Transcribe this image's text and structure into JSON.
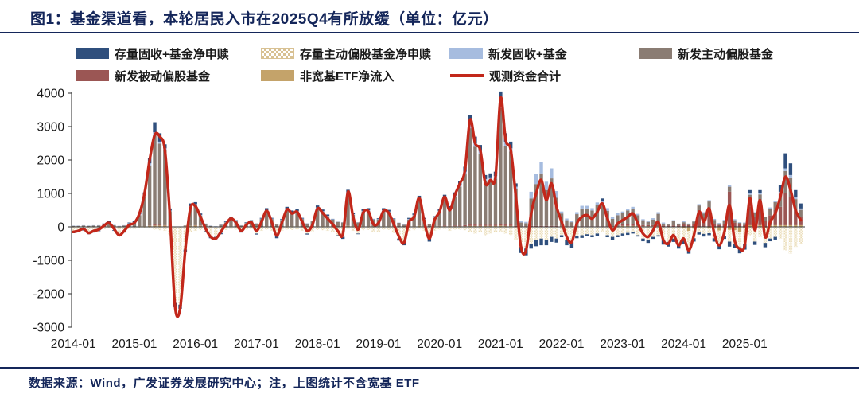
{
  "header": {
    "title": "图1：基金渠道看，本轮居民入市在2025Q4有所放缓（单位：亿元）"
  },
  "footer": {
    "text": "数据来源：Wind，广发证券发展研究中心；注，上图统计不含宽基 ETF"
  },
  "colors": {
    "title_navy": "#14265A",
    "navy_bar": "#2F4F7D",
    "dotted_tan": "#D8C193",
    "light_blue": "#A6BCDF",
    "gray_brown": "#8A7C73",
    "maroon": "#9B5654",
    "tan": "#C4A36A",
    "red_line": "#C2271A"
  },
  "legend": {
    "items": [
      {
        "label": "存量固收+基金净申赎",
        "color": "#2F4F7D",
        "type": "solid"
      },
      {
        "label": "存量主动偏股基金净申赎",
        "color": "#D8C193",
        "type": "pattern"
      },
      {
        "label": "新发固收+基金",
        "color": "#A6BCDF",
        "type": "solid"
      },
      {
        "label": "新发主动偏股基金",
        "color": "#8A7C73",
        "type": "solid"
      },
      {
        "label": "新发被动偏股基金",
        "color": "#9B5654",
        "type": "solid"
      },
      {
        "label": "非宽基ETF净流入",
        "color": "#C4A36A",
        "type": "solid"
      },
      {
        "label": "观测资金合计",
        "color": "#C2271A",
        "type": "line"
      }
    ]
  },
  "chart_data": {
    "type": "bar",
    "subtype": "stacked-bar-with-line",
    "title": "图1：基金渠道看，本轮居民入市在2025Q4有所放缓（单位：亿元）",
    "unit": "亿元",
    "freq": "monthly",
    "x_start": "2014-01",
    "x_end": "2025-12",
    "x_tick_labels": [
      "2014-01",
      "2015-01",
      "2016-01",
      "2017-01",
      "2018-01",
      "2019-01",
      "2020-01",
      "2021-01",
      "2022-01",
      "2023-01",
      "2024-01",
      "2025-01"
    ],
    "ylim": [
      -3000,
      4000
    ],
    "y_ticks": [
      4000,
      3000,
      2000,
      1000,
      0,
      -1000,
      -2000,
      -3000
    ],
    "grid": false,
    "legend_position": "top",
    "series": [
      {
        "key": "fi_exist",
        "name": "存量固收+基金净申赎",
        "color": "#2F4F7D",
        "pattern": false,
        "values": [
          -40,
          -30,
          -20,
          -50,
          -30,
          -20,
          20,
          40,
          -20,
          -60,
          -30,
          20,
          40,
          60,
          80,
          150,
          300,
          250,
          120,
          60,
          -120,
          -120,
          -60,
          80,
          60,
          40,
          -20,
          -60,
          -70,
          -40,
          20,
          40,
          20,
          -30,
          15,
          25,
          -30,
          20,
          60,
          20,
          -60,
          20,
          60,
          50,
          60,
          20,
          -30,
          10,
          60,
          50,
          40,
          10,
          -30,
          -60,
          110,
          40,
          -20,
          50,
          60,
          10,
          20,
          60,
          50,
          10,
          -60,
          -100,
          30,
          40,
          90,
          30,
          -90,
          30,
          50,
          90,
          60,
          90,
          120,
          150,
          280,
          200,
          180,
          120,
          120,
          130,
          350,
          250,
          200,
          100,
          -180,
          -200,
          -150,
          -180,
          -200,
          -150,
          -150,
          -120,
          -60,
          -150,
          -180,
          -60,
          -80,
          -60,
          -60,
          -80,
          90,
          -60,
          -90,
          -60,
          -60,
          -60,
          -50,
          -40,
          -80,
          -100,
          -60,
          -40,
          -130,
          -140,
          -100,
          -150,
          -120,
          -180,
          -100,
          -60,
          -80,
          -60,
          -100,
          -160,
          -80,
          -150,
          -130,
          -180,
          -180,
          100,
          -100,
          90,
          -130,
          -80,
          -80,
          200,
          450,
          350,
          220,
          150
        ]
      },
      {
        "key": "active_exist",
        "name": "存量主动偏股基金净申赎",
        "color": "#D8C193",
        "pattern": true,
        "values": [
          -140,
          -120,
          -90,
          -160,
          -130,
          -100,
          -70,
          -50,
          -90,
          -200,
          -130,
          -70,
          -60,
          -40,
          -30,
          -50,
          -80,
          -100,
          -120,
          -250,
          -2280,
          -2330,
          -680,
          -150,
          -120,
          -100,
          -130,
          -280,
          -300,
          -180,
          -90,
          -60,
          -80,
          -140,
          -80,
          -60,
          -200,
          -120,
          -80,
          -120,
          -280,
          -120,
          -80,
          -90,
          -80,
          -120,
          -200,
          -130,
          -90,
          -100,
          -120,
          -160,
          -250,
          -300,
          -60,
          -120,
          -200,
          -100,
          -90,
          -160,
          -140,
          -80,
          -90,
          -180,
          -350,
          -450,
          -120,
          -100,
          -60,
          -120,
          -350,
          -120,
          -80,
          -60,
          -120,
          -80,
          -80,
          -100,
          -150,
          -200,
          -150,
          -250,
          -200,
          -150,
          -150,
          -200,
          -250,
          -400,
          -600,
          -650,
          -500,
          -400,
          -350,
          -400,
          -300,
          -350,
          -250,
          -400,
          -450,
          -280,
          -250,
          -220,
          -250,
          -200,
          -150,
          -250,
          -300,
          -250,
          -200,
          -180,
          -150,
          -250,
          -350,
          -380,
          -300,
          -250,
          -400,
          -450,
          -350,
          -500,
          -350,
          -500,
          -300,
          -150,
          -200,
          -150,
          -300,
          -400,
          -250,
          -350,
          -400,
          -450,
          -450,
          -250,
          -400,
          -300,
          -450,
          -350,
          -300,
          -350,
          -700,
          -800,
          -600,
          -500
        ]
      },
      {
        "key": "fi_new",
        "name": "新发固收+基金",
        "color": "#A6BCDF",
        "pattern": false,
        "values": [
          10,
          10,
          10,
          10,
          10,
          10,
          15,
          20,
          10,
          10,
          10,
          15,
          20,
          30,
          40,
          60,
          80,
          60,
          50,
          20,
          0,
          0,
          0,
          30,
          30,
          20,
          10,
          10,
          10,
          10,
          15,
          20,
          15,
          10,
          10,
          15,
          10,
          15,
          20,
          15,
          10,
          15,
          25,
          20,
          25,
          15,
          10,
          15,
          20,
          20,
          15,
          15,
          10,
          10,
          30,
          20,
          10,
          20,
          20,
          15,
          15,
          20,
          20,
          15,
          10,
          10,
          20,
          20,
          30,
          20,
          10,
          20,
          30,
          50,
          30,
          50,
          60,
          80,
          120,
          100,
          90,
          60,
          70,
          80,
          150,
          120,
          100,
          80,
          50,
          40,
          200,
          300,
          350,
          250,
          300,
          200,
          60,
          50,
          40,
          60,
          80,
          80,
          70,
          80,
          100,
          80,
          50,
          60,
          50,
          50,
          60,
          40,
          30,
          30,
          40,
          50,
          30,
          20,
          30,
          20,
          30,
          20,
          30,
          40,
          40,
          40,
          30,
          20,
          30,
          40,
          30,
          20,
          20,
          40,
          20,
          40,
          20,
          30,
          40,
          60,
          80,
          70,
          50,
          40
        ]
      },
      {
        "key": "active_new",
        "name": "新发主动偏股基金",
        "color": "#8A7C73",
        "pattern": false,
        "values": [
          30,
          30,
          40,
          30,
          40,
          40,
          60,
          90,
          50,
          20,
          40,
          80,
          110,
          330,
          890,
          1800,
          2680,
          2430,
          2250,
          450,
          0,
          0,
          20,
          560,
          600,
          300,
          80,
          20,
          0,
          50,
          125,
          230,
          155,
          30,
          105,
          150,
          90,
          225,
          460,
          225,
          60,
          195,
          495,
          400,
          425,
          225,
          90,
          155,
          540,
          430,
          295,
          195,
          140,
          120,
          940,
          340,
          120,
          440,
          460,
          195,
          205,
          460,
          420,
          215,
          110,
          50,
          200,
          320,
          780,
          200,
          70,
          250,
          420,
          780,
          500,
          850,
          1160,
          1520,
          2880,
          2330,
          2120,
          1310,
          1350,
          1380,
          3460,
          2360,
          2180,
          1090,
          110,
          90,
          820,
          1250,
          1570,
          1070,
          1420,
          840,
          360,
          180,
          120,
          360,
          530,
          530,
          470,
          630,
          640,
          460,
          220,
          330,
          330,
          410,
          460,
          280,
          150,
          100,
          170,
          330,
          60,
          30,
          130,
          40,
          60,
          30,
          80,
          250,
          180,
          280,
          130,
          50,
          100,
          150,
          80,
          40,
          60,
          360,
          120,
          350,
          110,
          200,
          240,
          390,
          670,
          580,
          330,
          210
        ]
      },
      {
        "key": "passive_new",
        "name": "新发被动偏股基金",
        "color": "#9B5654",
        "pattern": false,
        "values": [
          0,
          0,
          0,
          0,
          0,
          0,
          0,
          0,
          0,
          0,
          0,
          0,
          0,
          0,
          0,
          10,
          30,
          20,
          10,
          0,
          0,
          0,
          0,
          0,
          10,
          10,
          0,
          0,
          0,
          0,
          0,
          0,
          0,
          0,
          0,
          0,
          0,
          0,
          0,
          0,
          0,
          0,
          0,
          0,
          0,
          0,
          0,
          0,
          0,
          0,
          0,
          0,
          0,
          0,
          0,
          0,
          0,
          0,
          0,
          0,
          0,
          0,
          0,
          0,
          0,
          0,
          0,
          0,
          0,
          0,
          0,
          0,
          10,
          20,
          10,
          20,
          20,
          30,
          40,
          40,
          30,
          30,
          30,
          30,
          50,
          40,
          40,
          20,
          10,
          10,
          20,
          20,
          20,
          20,
          20,
          20,
          20,
          10,
          10,
          10,
          10,
          10,
          10,
          10,
          10,
          10,
          10,
          10,
          50,
          50,
          50,
          40,
          30,
          30,
          30,
          40,
          30,
          30,
          30,
          30,
          80,
          50,
          80,
          390,
          220,
          480,
          80,
          50,
          80,
          1050,
          120,
          80,
          50,
          550,
          300,
          570,
          180,
          300,
          450,
          550,
          950,
          850,
          450,
          250
        ]
      },
      {
        "key": "etf",
        "name": "非宽基ETF净流入",
        "color": "#C4A36A",
        "pattern": false,
        "values": [
          -10,
          -10,
          0,
          -10,
          -10,
          -10,
          5,
          20,
          -10,
          -20,
          -10,
          15,
          10,
          20,
          20,
          30,
          40,
          40,
          40,
          20,
          0,
          0,
          20,
          30,
          40,
          30,
          10,
          10,
          10,
          10,
          10,
          20,
          10,
          10,
          10,
          10,
          10,
          10,
          20,
          10,
          10,
          10,
          20,
          20,
          20,
          10,
          10,
          10,
          20,
          20,
          20,
          20,
          10,
          10,
          30,
          20,
          10,
          20,
          20,
          20,
          20,
          20,
          20,
          20,
          10,
          10,
          20,
          20,
          30,
          20,
          10,
          20,
          20,
          20,
          20,
          20,
          20,
          20,
          30,
          30,
          30,
          30,
          30,
          30,
          40,
          30,
          30,
          10,
          10,
          10,
          10,
          10,
          10,
          10,
          10,
          10,
          20,
          10,
          10,
          10,
          10,
          10,
          10,
          10,
          10,
          10,
          10,
          10,
          30,
          30,
          30,
          30,
          20,
          20,
          20,
          20,
          10,
          10,
          10,
          10,
          -50,
          -120,
          -40,
          -20,
          -10,
          -40,
          -40,
          -110,
          -30,
          -90,
          -100,
          -160,
          -50,
          50,
          -40,
          50,
          -30,
          50,
          50,
          50,
          50,
          50,
          50,
          50
        ]
      }
    ],
    "line_series": {
      "name": "观测资金合计",
      "color": "#C2271A",
      "values": [
        -150,
        -120,
        -60,
        -180,
        -120,
        -80,
        30,
        120,
        -60,
        -250,
        -120,
        60,
        120,
        400,
        1000,
        2000,
        2750,
        2700,
        2300,
        300,
        -2380,
        -2440,
        -700,
        550,
        620,
        300,
        -50,
        -300,
        -350,
        -150,
        80,
        250,
        120,
        -120,
        60,
        140,
        -120,
        150,
        480,
        150,
        -260,
        120,
        520,
        400,
        450,
        150,
        -120,
        60,
        550,
        420,
        250,
        80,
        -120,
        -220,
        1050,
        300,
        -80,
        430,
        470,
        80,
        120,
        480,
        420,
        80,
        -280,
        -480,
        150,
        300,
        870,
        150,
        -350,
        200,
        450,
        900,
        500,
        950,
        1300,
        1700,
        3200,
        2500,
        2300,
        1300,
        1400,
        1500,
        3850,
        2600,
        2300,
        900,
        -600,
        -700,
        400,
        1000,
        1400,
        800,
        1300,
        600,
        150,
        -300,
        -450,
        100,
        300,
        350,
        250,
        450,
        700,
        250,
        -100,
        100,
        200,
        300,
        400,
        100,
        -200,
        -300,
        -100,
        150,
        -400,
        -500,
        -250,
        -550,
        -350,
        -700,
        -250,
        450,
        150,
        550,
        -200,
        -550,
        -150,
        650,
        -400,
        -650,
        -550,
        850,
        -100,
        800,
        -300,
        150,
        400,
        900,
        1500,
        1100,
        500,
        200
      ]
    }
  }
}
